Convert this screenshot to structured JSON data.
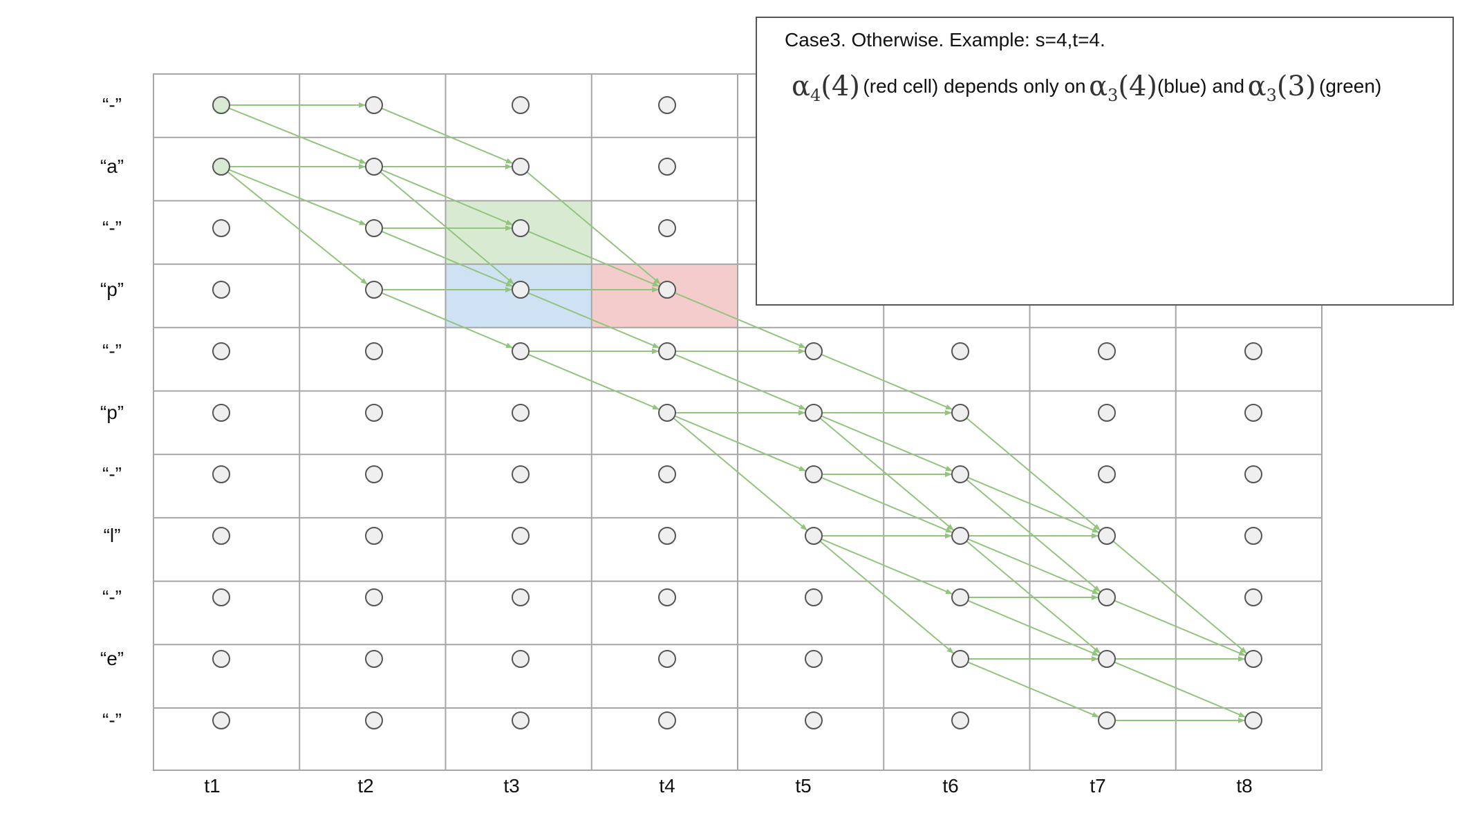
{
  "row_labels": [
    "“-”",
    "“a”",
    "“-”",
    "“p”",
    "“-”",
    "“p”",
    "“-”",
    "“l”",
    "“-”",
    "“e”",
    "“-”"
  ],
  "col_labels": [
    "t1",
    "t2",
    "t3",
    "t4",
    "t5",
    "t6",
    "t7",
    "t8"
  ],
  "colors": {
    "grid": "#a6a6a6",
    "node_fill": "#efefef",
    "node_stroke": "#555555",
    "node_start_fill": "#d9ead3",
    "arrow": "#93c47d",
    "green_cell": "#d9ead3",
    "blue_cell": "#cfe2f3",
    "red_cell": "#f4cccc"
  },
  "highlighted_cells": [
    {
      "row": 2,
      "col": 2,
      "color": "green"
    },
    {
      "row": 3,
      "col": 2,
      "color": "blue"
    },
    {
      "row": 3,
      "col": 3,
      "color": "red"
    }
  ],
  "start_nodes": [
    [
      0,
      0
    ],
    [
      1,
      0
    ]
  ],
  "edges": [
    [
      0,
      0,
      0,
      1
    ],
    [
      0,
      0,
      1,
      1
    ],
    [
      1,
      0,
      1,
      1
    ],
    [
      1,
      0,
      2,
      1
    ],
    [
      1,
      0,
      3,
      1
    ],
    [
      0,
      1,
      1,
      2
    ],
    [
      1,
      1,
      1,
      2
    ],
    [
      1,
      1,
      2,
      2
    ],
    [
      1,
      1,
      3,
      2
    ],
    [
      2,
      1,
      2,
      2
    ],
    [
      2,
      1,
      3,
      2
    ],
    [
      3,
      1,
      3,
      2
    ],
    [
      3,
      1,
      4,
      2
    ],
    [
      1,
      2,
      3,
      3
    ],
    [
      2,
      2,
      3,
      3
    ],
    [
      3,
      2,
      3,
      3
    ],
    [
      3,
      2,
      4,
      3
    ],
    [
      4,
      2,
      4,
      3
    ],
    [
      4,
      2,
      5,
      3
    ],
    [
      3,
      3,
      4,
      4
    ],
    [
      4,
      3,
      4,
      4
    ],
    [
      4,
      3,
      5,
      4
    ],
    [
      5,
      3,
      5,
      4
    ],
    [
      5,
      3,
      6,
      4
    ],
    [
      5,
      3,
      7,
      4
    ],
    [
      4,
      4,
      5,
      5
    ],
    [
      5,
      4,
      5,
      5
    ],
    [
      5,
      4,
      6,
      5
    ],
    [
      5,
      4,
      7,
      5
    ],
    [
      6,
      4,
      6,
      5
    ],
    [
      6,
      4,
      7,
      5
    ],
    [
      7,
      4,
      7,
      5
    ],
    [
      7,
      4,
      8,
      5
    ],
    [
      7,
      4,
      9,
      5
    ],
    [
      5,
      5,
      7,
      6
    ],
    [
      6,
      5,
      7,
      6
    ],
    [
      6,
      5,
      8,
      6
    ],
    [
      7,
      5,
      7,
      6
    ],
    [
      7,
      5,
      8,
      6
    ],
    [
      7,
      5,
      9,
      6
    ],
    [
      8,
      5,
      8,
      6
    ],
    [
      8,
      5,
      9,
      6
    ],
    [
      9,
      5,
      9,
      6
    ],
    [
      9,
      5,
      10,
      6
    ],
    [
      7,
      6,
      9,
      7
    ],
    [
      8,
      6,
      9,
      7
    ],
    [
      9,
      6,
      9,
      7
    ],
    [
      9,
      6,
      10,
      7
    ],
    [
      10,
      6,
      10,
      7
    ]
  ],
  "callout": {
    "title": "Case3. Otherwise. Example: s=4,t=4.",
    "term1_symbol": "α",
    "term1_sub": "4",
    "term1_arg": "(4)",
    "text1": "(red cell) depends only on",
    "term2_symbol": "α",
    "term2_sub": "3",
    "term2_arg": "(4)",
    "text2": "(blue) and",
    "term3_symbol": "α",
    "term3_sub": "3",
    "term3_arg": "(3)",
    "text3": "(green)"
  }
}
